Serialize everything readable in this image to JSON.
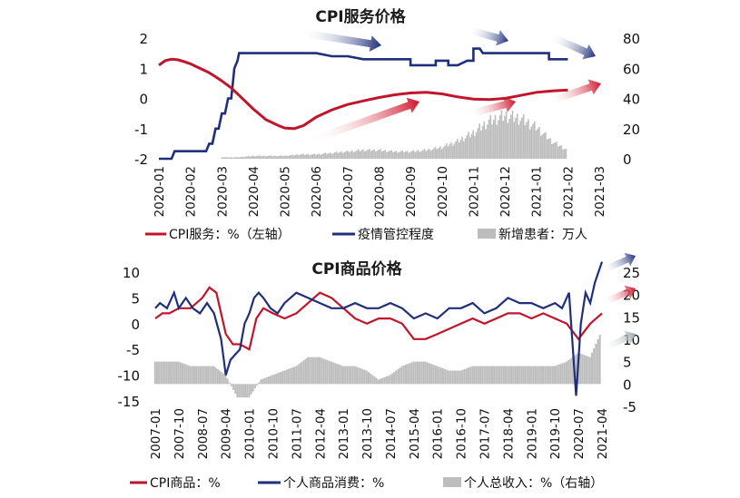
{
  "chart_data": [
    {
      "type": "line",
      "title": "CPI服务价格",
      "x_tick_labels": [
        "2020-01",
        "2020-02",
        "2020-03",
        "2020-04",
        "2020-05",
        "2020-06",
        "2020-07",
        "2020-08",
        "2020-09",
        "2020-10",
        "2020-11",
        "2020-12",
        "2021-01",
        "2021-02",
        "2021-03"
      ],
      "y_left": {
        "lim": [
          -2,
          2
        ],
        "ticks": [
          "2",
          "1",
          "0",
          "-1",
          "-2"
        ]
      },
      "y_right": {
        "lim": [
          0,
          80
        ],
        "ticks": [
          "80",
          "60",
          "40",
          "20",
          "0"
        ]
      },
      "legend": [
        {
          "label": "CPI服务：%（左轴）",
          "color": "#c0152b",
          "kind": "line"
        },
        {
          "label": "疫情管控程度",
          "color": "#1f2f7a",
          "kind": "line"
        },
        {
          "label": "新增患者：万人",
          "color": "#bdbdbd",
          "kind": "bar"
        }
      ],
      "series": [
        {
          "key": "cpi_service",
          "axis": "left",
          "color": "#c0152b",
          "x": [
            0.0,
            0.2,
            0.4,
            0.6,
            0.8,
            1.0,
            1.2,
            1.4,
            1.6,
            1.8,
            2.0,
            2.3,
            2.6,
            3.0,
            3.4,
            3.8,
            4.0,
            4.3,
            4.6,
            5.0,
            5.5,
            6.0,
            6.5,
            7.0,
            7.5,
            8.0,
            8.5,
            9.0,
            9.5,
            10.0,
            10.5,
            11.0,
            11.5,
            12.0,
            12.5,
            13.0
          ],
          "values": [
            1.1,
            1.25,
            1.3,
            1.28,
            1.22,
            1.15,
            1.05,
            0.95,
            0.85,
            0.72,
            0.58,
            0.35,
            0.05,
            -0.35,
            -0.7,
            -0.9,
            -0.98,
            -1.0,
            -0.9,
            -0.62,
            -0.38,
            -0.2,
            -0.08,
            0.03,
            0.12,
            0.18,
            0.2,
            0.15,
            0.05,
            -0.02,
            -0.04,
            0.0,
            0.1,
            0.2,
            0.25,
            0.28
          ]
        },
        {
          "key": "control_level",
          "axis": "right",
          "color": "#1f2f7a",
          "x": [
            0.0,
            0.4,
            0.5,
            1.0,
            1.3,
            1.5,
            1.6,
            1.7,
            1.8,
            1.9,
            2.0,
            2.1,
            2.2,
            2.3,
            2.35,
            2.4,
            2.5,
            2.55,
            3.0,
            3.5,
            4.0,
            4.5,
            5.0,
            5.5,
            6.0,
            6.5,
            7.0,
            7.5,
            8.0,
            8.0,
            8.5,
            8.8,
            8.8,
            9.0,
            9.2,
            9.2,
            9.5,
            9.8,
            10.0,
            10.0,
            10.2,
            10.3,
            10.5,
            10.5,
            10.8,
            11.0,
            11.5,
            12.0,
            12.2,
            12.4,
            12.4,
            13.0
          ],
          "values": [
            0,
            0,
            5,
            5,
            5,
            5,
            10,
            10,
            20,
            20,
            30,
            30,
            40,
            40,
            50,
            60,
            65,
            70,
            70,
            70,
            70,
            70,
            70,
            68,
            68,
            66,
            66,
            66,
            66,
            62,
            62,
            62,
            65,
            65,
            65,
            62,
            62,
            65,
            65,
            73,
            73,
            70,
            70,
            70,
            70,
            70,
            70,
            70,
            70,
            70,
            66,
            66
          ]
        },
        {
          "key": "new_patients",
          "axis": "right",
          "color": "#bdbdbd",
          "kind": "bar",
          "x": [
            2.0,
            2.5,
            3.0,
            3.5,
            4.0,
            4.5,
            5.0,
            5.5,
            6.0,
            6.5,
            7.0,
            7.5,
            8.0,
            8.5,
            9.0,
            9.5,
            10.0,
            10.5,
            11.0,
            11.5,
            12.0,
            12.5,
            13.0
          ],
          "values": [
            1,
            1,
            2,
            2,
            2,
            3,
            3,
            4,
            5,
            6,
            6,
            5,
            5,
            6,
            8,
            12,
            18,
            26,
            30,
            28,
            22,
            12,
            6
          ]
        }
      ],
      "arrows": [
        {
          "color": "#1f2f7a",
          "dir": "down"
        },
        {
          "color": "#1f2f7a",
          "dir": "down"
        },
        {
          "color": "#1f2f7a",
          "dir": "down"
        },
        {
          "color": "#c0152b",
          "dir": "up"
        },
        {
          "color": "#c0152b",
          "dir": "up"
        },
        {
          "color": "#c0152b",
          "dir": "up"
        }
      ]
    },
    {
      "type": "line",
      "title": "CPI商品价格",
      "x_tick_labels": [
        "2007-01",
        "2007-10",
        "2008-07",
        "2009-04",
        "2010-01",
        "2010-10",
        "2011-07",
        "2012-04",
        "2013-01",
        "2013-10",
        "2014-07",
        "2015-04",
        "2016-01",
        "2016-10",
        "2017-07",
        "2018-04",
        "2019-01",
        "2019-10",
        "2020-07",
        "2021-04"
      ],
      "y_left": {
        "lim": [
          -15,
          10
        ],
        "ticks": [
          "10",
          "5",
          "0",
          "-5",
          "-10",
          "-15"
        ]
      },
      "y_right": {
        "lim": [
          -5,
          25
        ],
        "ticks": [
          "25",
          "20",
          "15",
          "10",
          "5",
          "0",
          "-5"
        ]
      },
      "legend": [
        {
          "label": "CPI商品：%",
          "color": "#c0152b",
          "kind": "line"
        },
        {
          "label": "个人商品消费：%",
          "color": "#1f2f7a",
          "kind": "line"
        },
        {
          "label": "个人总收入：%（右轴）",
          "color": "#bdbdbd",
          "kind": "bar"
        }
      ],
      "series": [
        {
          "key": "cpi_goods",
          "axis": "left",
          "color": "#c0152b",
          "x": [
            0.0,
            0.3,
            0.6,
            1.0,
            1.5,
            2.0,
            2.3,
            2.6,
            3.0,
            3.3,
            3.6,
            4.0,
            4.3,
            4.6,
            5.0,
            5.5,
            6.0,
            6.5,
            7.0,
            7.5,
            8.0,
            8.5,
            9.0,
            9.5,
            10.0,
            10.5,
            11.0,
            11.5,
            12.0,
            12.5,
            13.0,
            13.5,
            14.0,
            14.5,
            15.0,
            15.5,
            16.0,
            16.5,
            17.0,
            17.5,
            18.0,
            18.5,
            19.0
          ],
          "values": [
            1,
            2,
            2,
            3,
            3,
            5,
            7,
            6,
            -2,
            -4,
            -4,
            -5,
            1,
            3,
            2,
            1,
            2,
            4,
            6,
            5,
            3,
            1,
            0,
            1,
            1,
            0,
            -3,
            -3,
            -2,
            -1,
            0,
            1,
            0,
            1,
            2,
            2,
            1,
            2,
            1,
            0,
            -3,
            0,
            2
          ]
        },
        {
          "key": "personal_goods_consumption",
          "axis": "left",
          "color": "#1f2f7a",
          "x": [
            0.0,
            0.2,
            0.5,
            0.8,
            1.0,
            1.3,
            1.6,
            1.9,
            2.2,
            2.5,
            2.8,
            3.0,
            3.2,
            3.4,
            3.6,
            3.8,
            4.0,
            4.2,
            4.4,
            4.6,
            4.9,
            5.2,
            5.5,
            6.0,
            6.5,
            7.0,
            7.5,
            8.0,
            8.5,
            9.0,
            9.5,
            10.0,
            10.5,
            11.0,
            11.5,
            12.0,
            12.5,
            13.0,
            13.5,
            14.0,
            14.5,
            15.0,
            15.5,
            16.0,
            16.5,
            17.0,
            17.3,
            17.6,
            17.9,
            18.1,
            18.3,
            18.5,
            18.7,
            19.0
          ],
          "values": [
            3,
            4,
            3,
            6,
            3,
            5,
            3,
            2,
            4,
            2,
            -3,
            -10,
            -7,
            -6,
            -5,
            0,
            2,
            5,
            6,
            5,
            3,
            2,
            4,
            6,
            5,
            4,
            3,
            3,
            4,
            3,
            3,
            4,
            3,
            1,
            2,
            1,
            3,
            3,
            4,
            2,
            3,
            5,
            4,
            4,
            3,
            4,
            3,
            6,
            -14,
            0,
            6,
            4,
            8,
            12
          ]
        },
        {
          "key": "personal_income",
          "axis": "right",
          "color": "#bdbdbd",
          "kind": "bar",
          "x": [
            0.0,
            0.5,
            1.0,
            1.5,
            2.0,
            2.5,
            3.0,
            3.5,
            4.0,
            4.5,
            5.0,
            5.5,
            6.0,
            6.5,
            7.0,
            7.5,
            8.0,
            8.5,
            9.0,
            9.5,
            10.0,
            10.5,
            11.0,
            11.5,
            12.0,
            12.5,
            13.0,
            13.5,
            14.0,
            14.5,
            15.0,
            15.5,
            16.0,
            16.5,
            17.0,
            17.5,
            18.0,
            18.5,
            19.0
          ],
          "values": [
            5,
            5,
            5,
            4,
            4,
            4,
            2,
            -3,
            -3,
            1,
            2,
            3,
            4,
            6,
            6,
            5,
            4,
            4,
            3,
            1,
            2,
            4,
            5,
            5,
            4,
            3,
            3,
            4,
            4,
            4,
            4,
            4,
            4,
            4,
            4,
            5,
            7,
            6,
            12
          ]
        }
      ],
      "arrows": [
        {
          "color": "#1f2f7a",
          "dir": "up"
        },
        {
          "color": "#c0152b",
          "dir": "up"
        },
        {
          "color": "#9fa8ad",
          "dir": "up"
        }
      ]
    }
  ]
}
